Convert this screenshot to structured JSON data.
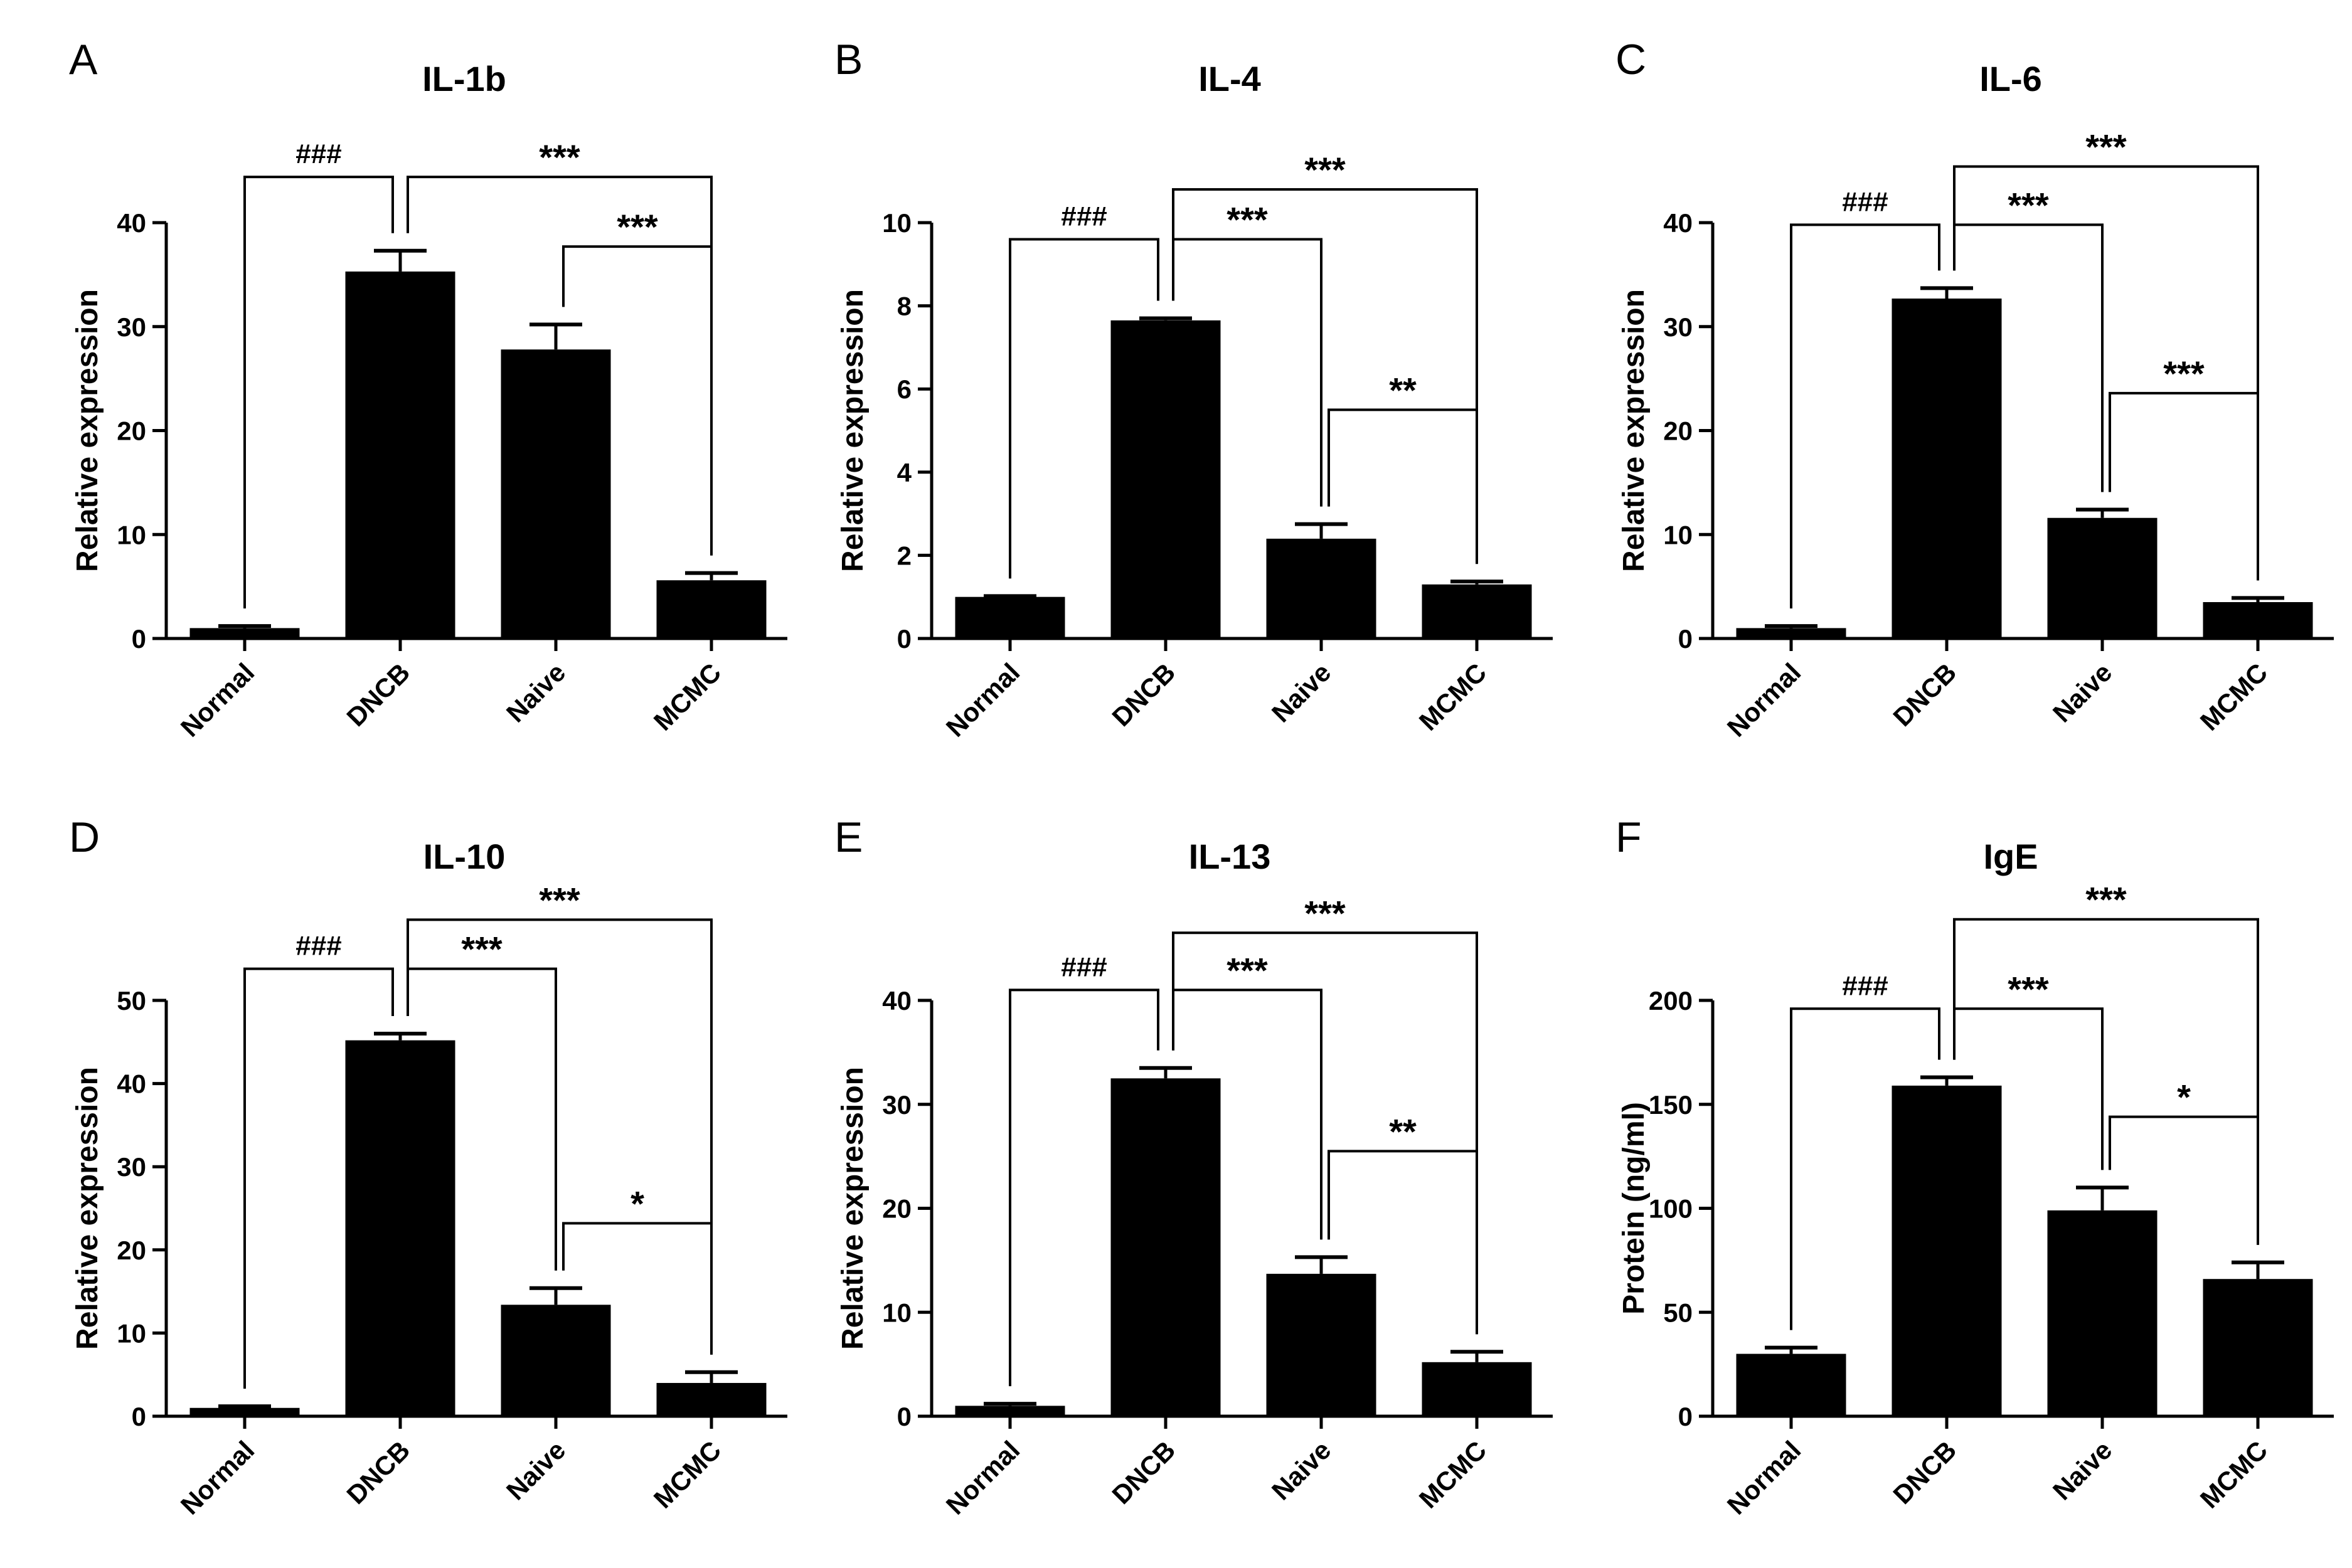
{
  "chart_data": [
    {
      "letter": "A",
      "type": "bar",
      "title": "IL-1b",
      "ylabel": "Relative expression",
      "categories": [
        "Normal",
        "DNCB",
        "Naive",
        "MCMC"
      ],
      "values": [
        1,
        35.3,
        27.8,
        5.6
      ],
      "errors": [
        0.2,
        2.0,
        2.4,
        0.7
      ],
      "ylim": [
        0,
        40
      ],
      "yticks": [
        "0",
        "10",
        "20",
        "30",
        "40"
      ],
      "ytick_values": [
        0,
        10,
        20,
        30,
        40
      ],
      "comparisons": [
        {
          "from": 0,
          "to": 1,
          "label": "###",
          "y": 44.4
        },
        {
          "from": 1,
          "to": 3,
          "label": "***",
          "y": 44.4
        },
        {
          "from": 2,
          "to": 3,
          "label": "***",
          "y": 37.7
        }
      ]
    },
    {
      "letter": "B",
      "type": "bar",
      "title": "IL-4",
      "ylabel": "Relative expression",
      "categories": [
        "Normal",
        "DNCB",
        "Naive",
        "MCMC"
      ],
      "values": [
        1.0,
        7.65,
        2.4,
        1.3
      ],
      "errors": [
        0.02,
        0.05,
        0.35,
        0.07
      ],
      "ylim": [
        0,
        10
      ],
      "yticks": [
        "0",
        "2",
        "4",
        "6",
        "8",
        "10"
      ],
      "ytick_values": [
        0,
        2,
        4,
        6,
        8,
        10
      ],
      "comparisons": [
        {
          "from": 0,
          "to": 1,
          "label": "###",
          "y": 9.6
        },
        {
          "from": 1,
          "to": 3,
          "label": "***",
          "y": 10.8
        },
        {
          "from": 1,
          "to": 2,
          "label": "***",
          "y": 9.6
        },
        {
          "from": 2,
          "to": 3,
          "label": "**",
          "y": 5.5
        }
      ]
    },
    {
      "letter": "C",
      "type": "bar",
      "title": "IL-6",
      "ylabel": "Relative expression",
      "categories": [
        "Normal",
        "DNCB",
        "Naive",
        "MCMC"
      ],
      "values": [
        1,
        32.7,
        11.6,
        3.5
      ],
      "errors": [
        0.2,
        1.0,
        0.8,
        0.4
      ],
      "ylim": [
        0,
        40
      ],
      "yticks": [
        "0",
        "10",
        "20",
        "30",
        "40"
      ],
      "ytick_values": [
        0,
        10,
        20,
        30,
        40
      ],
      "comparisons": [
        {
          "from": 0,
          "to": 1,
          "label": "###",
          "y": 39.8
        },
        {
          "from": 1,
          "to": 3,
          "label": "***",
          "y": 45.4
        },
        {
          "from": 1,
          "to": 2,
          "label": "***",
          "y": 39.8
        },
        {
          "from": 2,
          "to": 3,
          "label": "***",
          "y": 23.6
        }
      ]
    },
    {
      "letter": "D",
      "type": "bar",
      "title": "IL-10",
      "ylabel": "Relative expression",
      "categories": [
        "Normal",
        "DNCB",
        "Naive",
        "MCMC"
      ],
      "values": [
        1,
        45.2,
        13.4,
        4.0
      ],
      "errors": [
        0.2,
        0.8,
        2.0,
        1.3
      ],
      "ylim": [
        0,
        50
      ],
      "yticks": [
        "0",
        "10",
        "20",
        "30",
        "40",
        "50"
      ],
      "ytick_values": [
        0,
        10,
        20,
        30,
        40,
        50
      ],
      "comparisons": [
        {
          "from": 0,
          "to": 1,
          "label": "###",
          "y": 53.8
        },
        {
          "from": 1,
          "to": 3,
          "label": "***",
          "y": 59.7
        },
        {
          "from": 1,
          "to": 2,
          "label": "***",
          "y": 53.8
        },
        {
          "from": 2,
          "to": 3,
          "label": "*",
          "y": 23.2
        }
      ]
    },
    {
      "letter": "E",
      "type": "bar",
      "title": "IL-13",
      "ylabel": "Relative expression",
      "categories": [
        "Normal",
        "DNCB",
        "Naive",
        "MCMC"
      ],
      "values": [
        1,
        32.5,
        13.7,
        5.2
      ],
      "errors": [
        0.2,
        1.0,
        1.6,
        1.0
      ],
      "ylim": [
        0,
        40
      ],
      "yticks": [
        "0",
        "10",
        "20",
        "30",
        "40"
      ],
      "ytick_values": [
        0,
        10,
        20,
        30,
        40
      ],
      "comparisons": [
        {
          "from": 0,
          "to": 1,
          "label": "###",
          "y": 41.0
        },
        {
          "from": 1,
          "to": 3,
          "label": "***",
          "y": 46.5
        },
        {
          "from": 1,
          "to": 2,
          "label": "***",
          "y": 41.0
        },
        {
          "from": 2,
          "to": 3,
          "label": "**",
          "y": 25.5
        }
      ]
    },
    {
      "letter": "F",
      "type": "bar",
      "title": "IgE",
      "ylabel": "Protein (ng/ml)",
      "categories": [
        "Normal",
        "DNCB",
        "Naive",
        "MCMC"
      ],
      "values": [
        30,
        159,
        99,
        66
      ],
      "errors": [
        3,
        4,
        11,
        8
      ],
      "ylim": [
        0,
        200
      ],
      "yticks": [
        "0",
        "50",
        "100",
        "150",
        "200"
      ],
      "ytick_values": [
        0,
        50,
        100,
        150,
        200
      ],
      "comparisons": [
        {
          "from": 0,
          "to": 1,
          "label": "###",
          "y": 196
        },
        {
          "from": 1,
          "to": 3,
          "label": "***",
          "y": 239
        },
        {
          "from": 1,
          "to": 2,
          "label": "***",
          "y": 196
        },
        {
          "from": 2,
          "to": 3,
          "label": "*",
          "y": 144
        }
      ]
    }
  ]
}
